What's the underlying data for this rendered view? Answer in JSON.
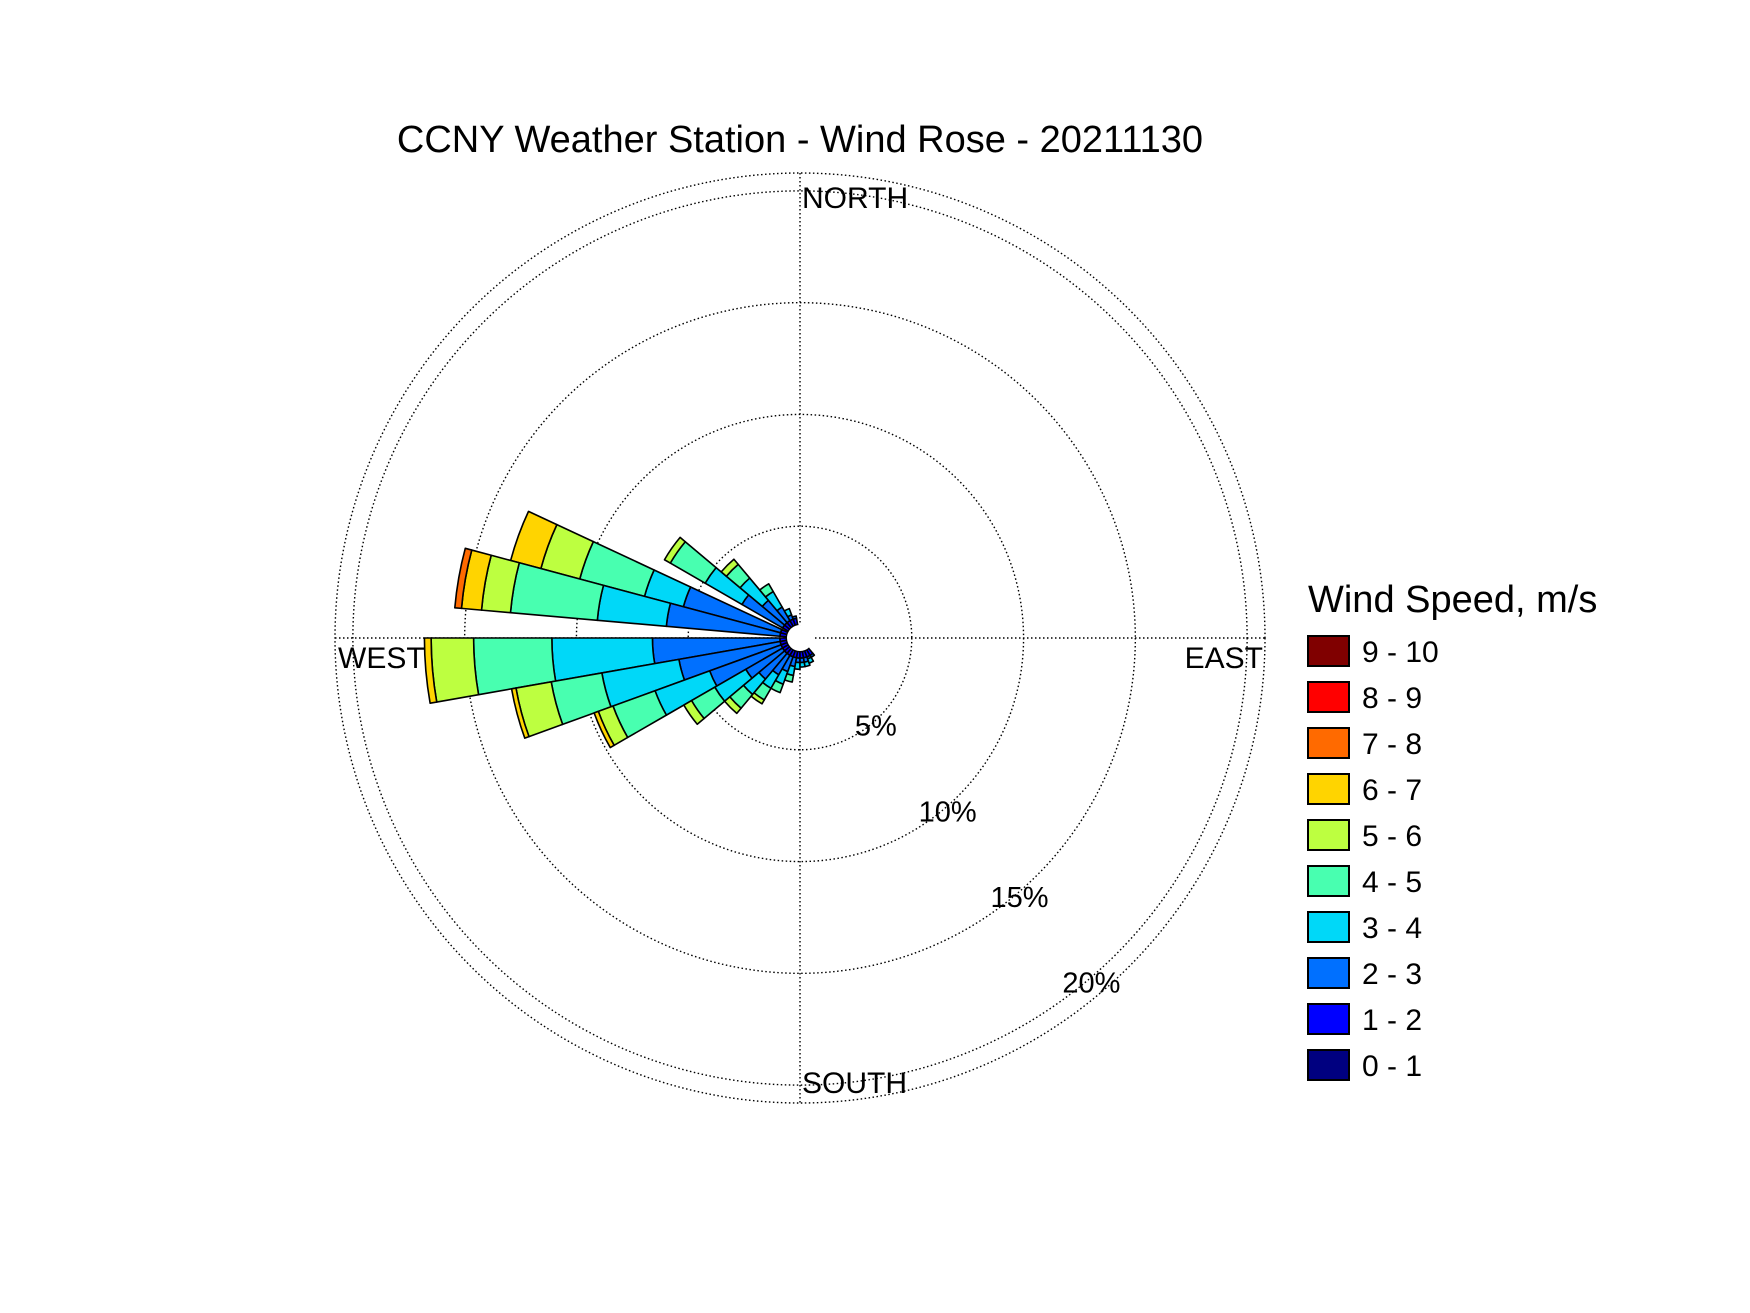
{
  "chart_data": {
    "type": "windrose",
    "title": "CCNY Weather Station - Wind Rose - 20211130",
    "direction_labels": {
      "north": "NORTH",
      "east": "EAST",
      "south": "SOUTH",
      "west": "WEST"
    },
    "radial_ticks": [
      5,
      10,
      15,
      20
    ],
    "radial_tick_labels": [
      "5%",
      "10%",
      "15%",
      "20%"
    ],
    "radial_max": 20.8,
    "grid": "dotted",
    "legend": {
      "title": "Wind Speed, m/s",
      "placement": "right",
      "entries": [
        {
          "label": "9 - 10",
          "color": "#800000"
        },
        {
          "label": "8 - 9",
          "color": "#ff0000"
        },
        {
          "label": "7 - 8",
          "color": "#ff6a00"
        },
        {
          "label": "6 - 7",
          "color": "#ffd400"
        },
        {
          "label": "5 - 6",
          "color": "#bdff40"
        },
        {
          "label": "4 - 5",
          "color": "#48ffb0"
        },
        {
          "label": "3 - 4",
          "color": "#00d8f8"
        },
        {
          "label": "2 - 3",
          "color": "#0070ff"
        },
        {
          "label": "1 - 2",
          "color": "#0000ff"
        },
        {
          "label": "0 - 1",
          "color": "#000080"
        }
      ]
    },
    "bin_order": [
      "0 - 1",
      "1 - 2",
      "2 - 3",
      "3 - 4",
      "4 - 5",
      "5 - 6",
      "6 - 7",
      "7 - 8",
      "8 - 9",
      "9 - 10"
    ],
    "sector_width_deg": 10,
    "sectors": [
      {
        "direction_deg": 290,
        "cumulative_percent": [
          0.6,
          0.9,
          5.4,
          7.2,
          10.2,
          12.0,
          13.4
        ]
      },
      {
        "direction_deg": 280,
        "cumulative_percent": [
          0.6,
          0.9,
          6.0,
          9.1,
          13.0,
          14.3,
          15.2,
          15.5
        ]
      },
      {
        "direction_deg": 265,
        "cumulative_percent": [
          0.6,
          0.9,
          6.6,
          11.1,
          14.6,
          16.5,
          16.8
        ]
      },
      {
        "direction_deg": 255,
        "cumulative_percent": [
          0.6,
          0.9,
          5.5,
          9.0,
          11.3,
          12.9,
          13.1
        ]
      },
      {
        "direction_deg": 245,
        "cumulative_percent": [
          0.6,
          0.9,
          4.3,
          6.9,
          8.9,
          9.6,
          9.8
        ]
      },
      {
        "direction_deg": 305,
        "cumulative_percent": [
          0.6,
          0.9,
          3.0,
          4.9,
          6.7,
          7.0
        ]
      },
      {
        "direction_deg": 235,
        "cumulative_percent": [
          0.6,
          0.9,
          2.8,
          4.4,
          5.6,
          6.0
        ]
      },
      {
        "direction_deg": 315,
        "cumulative_percent": [
          0.6,
          0.9,
          2.2,
          3.5,
          4.3,
          4.6
        ]
      },
      {
        "direction_deg": 225,
        "cumulative_percent": [
          0.6,
          0.9,
          2.4,
          3.3,
          4.1,
          4.4
        ]
      },
      {
        "direction_deg": 325,
        "cumulative_percent": [
          0.6,
          0.9,
          1.6,
          2.4,
          2.8
        ]
      },
      {
        "direction_deg": 215,
        "cumulative_percent": [
          0.6,
          0.9,
          1.9,
          2.6,
          3.2,
          3.4
        ]
      },
      {
        "direction_deg": 205,
        "cumulative_percent": [
          0.6,
          0.9,
          1.6,
          2.2,
          2.6
        ]
      },
      {
        "direction_deg": 195,
        "cumulative_percent": [
          0.6,
          0.9,
          1.3,
          1.7,
          2.0
        ]
      },
      {
        "direction_deg": 185,
        "cumulative_percent": [
          0.6,
          0.9,
          1.1,
          1.4
        ]
      },
      {
        "direction_deg": 175,
        "cumulative_percent": [
          0.6,
          0.9,
          1.1,
          1.3
        ]
      },
      {
        "direction_deg": 165,
        "cumulative_percent": [
          0.6,
          0.9,
          1.1,
          1.3
        ]
      },
      {
        "direction_deg": 155,
        "cumulative_percent": [
          0.6,
          0.9,
          1.0,
          1.2
        ]
      },
      {
        "direction_deg": 145,
        "cumulative_percent": [
          0.6,
          0.9,
          1.0
        ]
      },
      {
        "direction_deg": 335,
        "cumulative_percent": [
          0.6,
          0.9,
          1.1,
          1.4
        ]
      },
      {
        "direction_deg": 345,
        "cumulative_percent": [
          0.6,
          0.9,
          1.0
        ]
      }
    ]
  }
}
